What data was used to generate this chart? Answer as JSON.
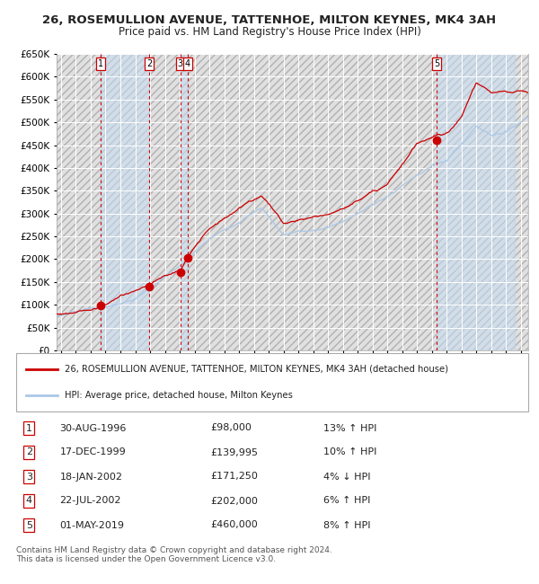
{
  "title": "26, ROSEMULLION AVENUE, TATTENHOE, MILTON KEYNES, MK4 3AH",
  "subtitle": "Price paid vs. HM Land Registry's House Price Index (HPI)",
  "ylim": [
    0,
    650000
  ],
  "yticks": [
    0,
    50000,
    100000,
    150000,
    200000,
    250000,
    300000,
    350000,
    400000,
    450000,
    500000,
    550000,
    600000,
    650000
  ],
  "xlim_start": 1993.7,
  "xlim_end": 2025.5,
  "background_color": "#ffffff",
  "plot_bg_color": "#dce9f5",
  "grid_color": "#ffffff",
  "sale_dates": [
    1996.66,
    1999.96,
    2002.05,
    2002.55,
    2019.33
  ],
  "sale_prices": [
    98000,
    139995,
    171250,
    202000,
    460000
  ],
  "sale_labels": [
    "1",
    "2",
    "3",
    "4",
    "5"
  ],
  "sale_dot_color": "#cc0000",
  "red_line_color": "#cc0000",
  "blue_line_color": "#aac8e8",
  "dashed_line_color": "#cc0000",
  "legend_red_label": "26, ROSEMULLION AVENUE, TATTENHOE, MILTON KEYNES, MK4 3AH (detached house)",
  "legend_blue_label": "HPI: Average price, detached house, Milton Keynes",
  "table_rows": [
    [
      "1",
      "30-AUG-1996",
      "£98,000",
      "13% ↑ HPI"
    ],
    [
      "2",
      "17-DEC-1999",
      "£139,995",
      "10% ↑ HPI"
    ],
    [
      "3",
      "18-JAN-2002",
      "£171,250",
      "4% ↓ HPI"
    ],
    [
      "4",
      "22-JUL-2002",
      "£202,000",
      "6% ↑ HPI"
    ],
    [
      "5",
      "01-MAY-2019",
      "£460,000",
      "8% ↑ HPI"
    ]
  ],
  "footer": "Contains HM Land Registry data © Crown copyright and database right 2024.\nThis data is licensed under the Open Government Licence v3.0.",
  "title_fontsize": 9.5,
  "subtitle_fontsize": 8.5
}
